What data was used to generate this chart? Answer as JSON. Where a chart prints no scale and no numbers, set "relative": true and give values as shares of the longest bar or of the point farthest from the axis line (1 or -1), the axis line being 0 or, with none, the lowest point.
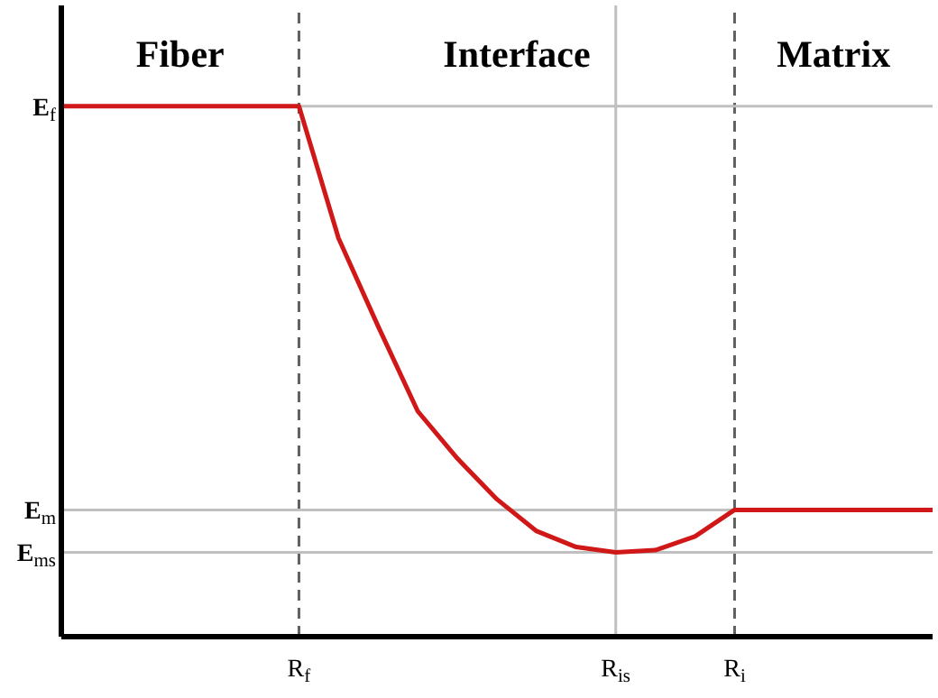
{
  "chart_data": {
    "type": "line",
    "relative": true,
    "categories": [
      null,
      null,
      null,
      null,
      null,
      null,
      "R$_{f}$",
      null,
      null,
      null,
      null,
      null,
      null,
      null,
      "R$_{is}$",
      null,
      null,
      "R$_{i}$",
      null,
      null,
      null,
      null,
      null
    ],
    "series": [
      {
        "color": "#d01818",
        "values": [
          1,
          1,
          1,
          1,
          1,
          1,
          1,
          0.751,
          0.585,
          0.425,
          0.336,
          0.259,
          0.199,
          0.169,
          0.159,
          0.163,
          0.189,
          0.239,
          0.239,
          0.239,
          0.239,
          0.239,
          0.239
        ]
      }
    ],
    "marker": "none",
    "line_style": "solid",
    "ref_lines": [
      {
        "axis": "x",
        "value": "R$_{f}$",
        "color": "#606060",
        "line_style": "dashed"
      },
      {
        "axis": "x",
        "value": "R$_{is}$",
        "color": "#c0c0c0",
        "line_style": "solid"
      },
      {
        "axis": "x",
        "value": "R$_{i}$",
        "color": "#606060",
        "line_style": "dashed"
      },
      {
        "axis": "y",
        "value": 1,
        "label": "E$_{f}$",
        "color": "#c0c0c0",
        "line_style": "solid"
      },
      {
        "axis": "y",
        "value": 0.239,
        "label": "E$_{m}$",
        "color": "#c0c0c0",
        "line_style": "solid"
      },
      {
        "axis": "y",
        "value": 0.159,
        "label": "E$_{ms}$",
        "color": "#c0c0c0",
        "line_style": "solid"
      }
    ],
    "annotations": [
      "Fiber",
      "Interface",
      "Matrix"
    ]
  }
}
